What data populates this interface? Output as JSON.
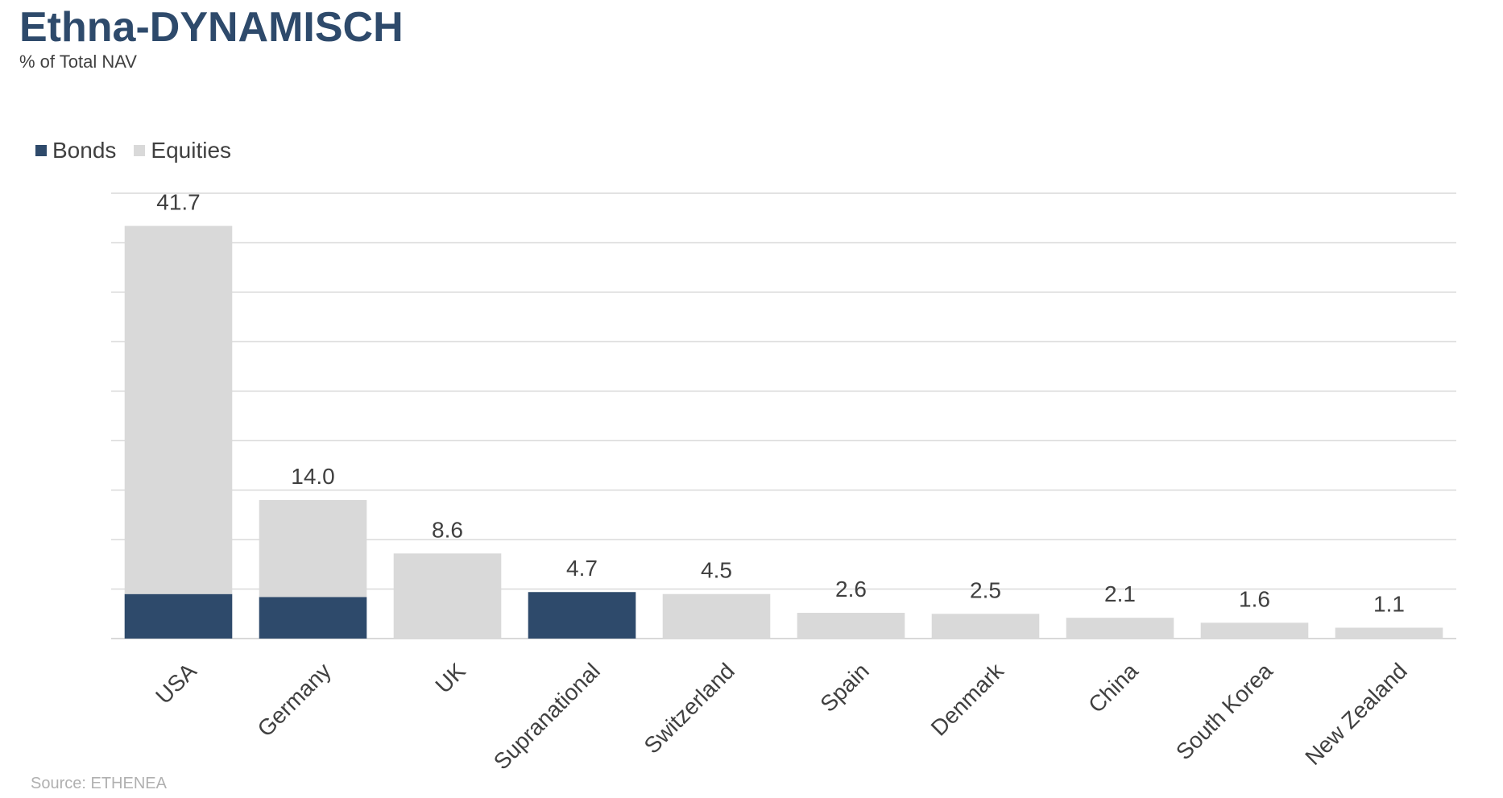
{
  "header": {
    "title": "Ethna-DYNAMISCH",
    "subtitle": "% of Total NAV"
  },
  "colors": {
    "title": "#2e4a6b",
    "bonds": "#2e4a6b",
    "equities": "#d9d9d9",
    "grid": "#d9d9d9",
    "text": "#404040"
  },
  "footer": {
    "source": "Source: ETHENEA"
  },
  "chart_data": {
    "type": "bar",
    "stacked": true,
    "title": "Ethna-DYNAMISCH",
    "subtitle": "% of Total NAV",
    "legend": {
      "position": "top-left",
      "entries": [
        "Bonds",
        "Equities"
      ]
    },
    "grid": true,
    "ylim": [
      0,
      45
    ],
    "categories": [
      "USA",
      "Germany",
      "UK",
      "Supranational",
      "Switzerland",
      "Spain",
      "Denmark",
      "China",
      "South Korea",
      "New Zealand"
    ],
    "series": [
      {
        "name": "Bonds",
        "values": [
          4.5,
          4.2,
          0,
          4.7,
          0,
          0,
          0,
          0,
          0,
          0
        ]
      },
      {
        "name": "Equities",
        "values": [
          37.2,
          9.8,
          8.6,
          0,
          4.5,
          2.6,
          2.5,
          2.1,
          1.6,
          1.1
        ]
      }
    ],
    "totals": [
      "41.7",
      "14.0",
      "8.6",
      "4.7",
      "4.5",
      "2.6",
      "2.5",
      "2.1",
      "1.6",
      "1.1"
    ]
  }
}
